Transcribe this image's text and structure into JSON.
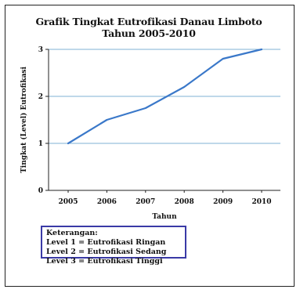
{
  "chart_data": {
    "type": "line",
    "title": "Grafik Tingkat Eutrofikasi Danau Limboto",
    "subtitle": "Tahun 2005-2010",
    "xlabel": "Tahun",
    "ylabel": "Tingkat (Level) Eutrofikasi",
    "categories": [
      "2005",
      "2006",
      "2007",
      "2008",
      "2009",
      "2010"
    ],
    "series": [
      {
        "values": [
          1.0,
          1.5,
          1.75,
          2.2,
          2.8,
          3.0
        ]
      }
    ],
    "ylim": [
      0,
      3
    ],
    "yticks": [
      "0",
      "1",
      "2",
      "3"
    ],
    "grid": true,
    "line_color": "#3a78c9",
    "grid_color": "#7fb1d6"
  },
  "legend": {
    "heading": "Keterangan:",
    "items": [
      "Level 1 = Eutrofikasi Ringan",
      "Level 2 = Eutrofikasi Sedang",
      "Level 3 = Eutrofikasi Tinggi"
    ],
    "border_color": "#3a3aa6"
  }
}
